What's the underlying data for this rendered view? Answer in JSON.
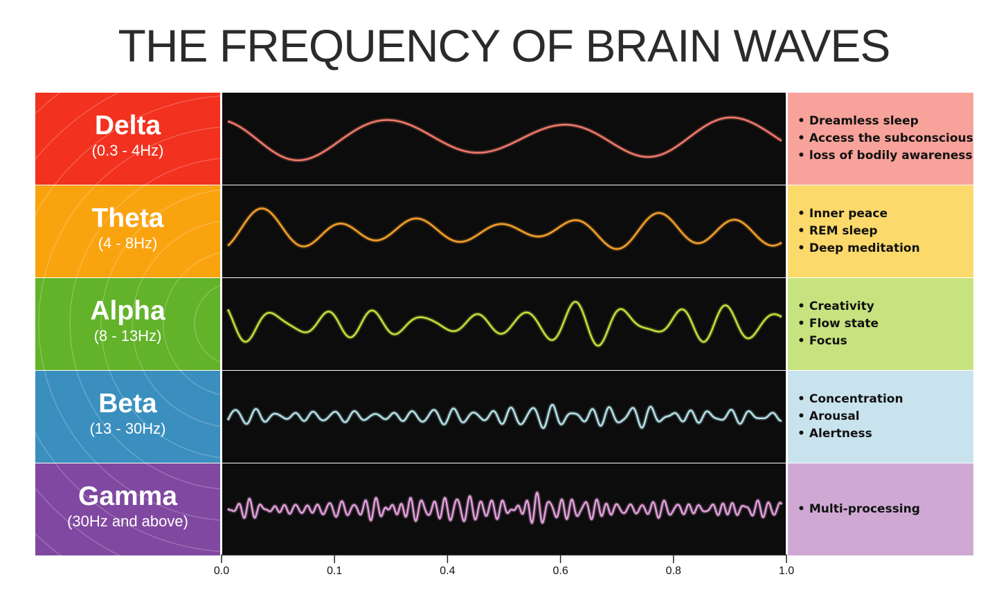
{
  "title": "THE FREQUENCY OF BRAIN WAVES",
  "bands": [
    {
      "name": "Delta",
      "range": "(0.3 - 4Hz)",
      "label_color": "#f2311f",
      "info_color": "#f7a29a",
      "wave_color": "#f37a6c",
      "cycles": 3.2,
      "complexity": 1,
      "effects": [
        "Dreamless sleep",
        "Access the subconscious",
        "loss of bodily awareness"
      ]
    },
    {
      "name": "Theta",
      "range": "(4 - 8Hz)",
      "label_color": "#f9a30f",
      "info_color": "#fbd96a",
      "wave_color": "#f6a12a",
      "cycles": 7,
      "complexity": 2,
      "effects": [
        "Inner peace",
        "REM sleep",
        "Deep meditation"
      ]
    },
    {
      "name": "Alpha",
      "range": "(8 - 13Hz)",
      "label_color": "#62b22a",
      "info_color": "#c7e37f",
      "wave_color": "#c5e23a",
      "cycles": 11,
      "complexity": 3,
      "effects": [
        "Creativity",
        "Flow state",
        "Focus"
      ]
    },
    {
      "name": "Beta",
      "range": "(13 - 30Hz)",
      "label_color": "#3b8fbe",
      "info_color": "#c9e3ee",
      "wave_color": "#b7e3ea",
      "cycles": 28,
      "complexity": 4,
      "effects": [
        "Concentration",
        "Arousal",
        "Alertness"
      ]
    },
    {
      "name": "Gamma",
      "range": "(30Hz and above)",
      "label_color": "#8048a0",
      "info_color": "#cfa9d3",
      "wave_color": "#e3a0dc",
      "cycles": 48,
      "complexity": 5,
      "effects": [
        "Multi-processing"
      ]
    }
  ],
  "axis_ticks": [
    "0.0",
    "0.1",
    "0.4",
    "0.6",
    "0.8",
    "1.0"
  ]
}
